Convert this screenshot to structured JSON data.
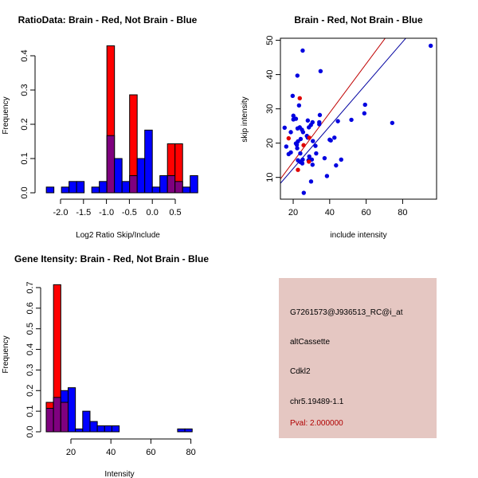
{
  "colors": {
    "red": "#ff0000",
    "blue": "#0000ff",
    "overlap": "#7f007f",
    "panel": "#e5c7c2",
    "pval": "#b00000"
  },
  "chart_data": [
    {
      "type": "bar",
      "title": "RatioData: Brain - Red, Not Brain - Blue",
      "xlabel": "Log2 Ratio Skip/Include",
      "ylabel": "Frequency",
      "bin_start": -2.31,
      "bin_width": 0.165,
      "xticks": [
        "-2.0",
        "-1.5",
        "-1.0",
        "-0.5",
        "0.0",
        "0.5"
      ],
      "xtick_values": [
        -2.0,
        -1.5,
        -1.0,
        -0.5,
        0.0,
        0.5
      ],
      "yticks": [
        "0.0",
        "0.1",
        "0.2",
        "0.3",
        "0.4"
      ],
      "ytick_values": [
        0,
        0.1,
        0.2,
        0.3,
        0.4
      ],
      "series": [
        {
          "name": "Not Brain",
          "color": "blue",
          "values": [
            0.0167,
            0,
            0.0167,
            0.033,
            0.033,
            0,
            0.0167,
            0.033,
            0.167,
            0.1,
            0.033,
            0.05,
            0.1,
            0.183,
            0.0167,
            0.05,
            0.05,
            0.033,
            0.0167,
            0.05
          ]
        },
        {
          "name": "Brain",
          "color": "red",
          "values": [
            0,
            0,
            0,
            0,
            0,
            0,
            0,
            0,
            0.429,
            0,
            0,
            0.286,
            0,
            0,
            0,
            0,
            0.143,
            0.143,
            0,
            0
          ]
        }
      ]
    },
    {
      "type": "scatter",
      "title": "Brain - Red, Not Brain - Blue",
      "xlabel": "include intensity",
      "ylabel": "skip intensity",
      "xlim": [
        13,
        98.6
      ],
      "ylim": [
        3.65,
        50.6
      ],
      "xticks": [
        "20",
        "40",
        "60",
        "80"
      ],
      "xtick_values": [
        20,
        40,
        60,
        80
      ],
      "yticks": [
        "10",
        "20",
        "30",
        "40",
        "50"
      ],
      "ytick_values": [
        10,
        20,
        30,
        40,
        50
      ],
      "series": [
        {
          "name": "Not Brain",
          "color": "blue",
          "points": [
            [
              95.4,
              48.4
            ],
            [
              25.2,
              47
            ],
            [
              22.3,
              39.7
            ],
            [
              35,
              41
            ],
            [
              19.7,
              33.8
            ],
            [
              23.2,
              31
            ],
            [
              59.4,
              31.2
            ],
            [
              59,
              28.7
            ],
            [
              74.3,
              25.9
            ],
            [
              20.1,
              28
            ],
            [
              20.1,
              26.9
            ],
            [
              21.5,
              27.1
            ],
            [
              34.6,
              28.2
            ],
            [
              51.9,
              26.8
            ],
            [
              44.5,
              26.4
            ],
            [
              28,
              26.6
            ],
            [
              30.6,
              26.1
            ],
            [
              34.3,
              26.1
            ],
            [
              34.3,
              25.5
            ],
            [
              29.7,
              25.3
            ],
            [
              15.3,
              24.5
            ],
            [
              23.6,
              24.6
            ],
            [
              28.6,
              24.6
            ],
            [
              22.4,
              24.3
            ],
            [
              24.8,
              23.9
            ],
            [
              25.4,
              23.2
            ],
            [
              18.7,
              23.2
            ],
            [
              27.5,
              22.1
            ],
            [
              28,
              21.6
            ],
            [
              42.6,
              21.6
            ],
            [
              40,
              21
            ],
            [
              40.6,
              20.8
            ],
            [
              24.1,
              21.2
            ],
            [
              22.6,
              20.5
            ],
            [
              30.8,
              20.6
            ],
            [
              21.5,
              19.9
            ],
            [
              22,
              19.5
            ],
            [
              32.2,
              19.2
            ],
            [
              16.2,
              19
            ],
            [
              22.2,
              18.5
            ],
            [
              18.7,
              17.3
            ],
            [
              17.5,
              16.8
            ],
            [
              23.9,
              17
            ],
            [
              32.6,
              17
            ],
            [
              28.8,
              16.1
            ],
            [
              37.2,
              15.6
            ],
            [
              22.6,
              15
            ],
            [
              29.1,
              15.3
            ],
            [
              30.2,
              15.2
            ],
            [
              25.2,
              15.2
            ],
            [
              46.3,
              15.2
            ],
            [
              23.9,
              14.5
            ],
            [
              28.4,
              15
            ],
            [
              25,
              14.1
            ],
            [
              30.6,
              13.7
            ],
            [
              43.5,
              13.5
            ],
            [
              38.5,
              10.4
            ],
            [
              29.8,
              8.8
            ],
            [
              25.8,
              5.5
            ]
          ]
        },
        {
          "name": "Brain",
          "color": "red",
          "points": [
            [
              23.6,
              33.1
            ],
            [
              28.8,
              21.6
            ],
            [
              17.5,
              21.4
            ],
            [
              25.7,
              19.4
            ],
            [
              28.6,
              14.6
            ],
            [
              22.6,
              12.2
            ]
          ]
        }
      ],
      "fit_lines": [
        {
          "color": "red",
          "slope": 0.715,
          "intercept": 0.24
        },
        {
          "color": "blue",
          "slope": 0.616,
          "intercept": 0.26
        }
      ]
    },
    {
      "type": "bar",
      "title": "Gene Itensity: Brain - Red, Not Brain - Blue",
      "xlabel": "Intensity",
      "ylabel": "Frequency",
      "bin_start": 7.65,
      "bin_width": 3.65,
      "xticks": [
        "20",
        "40",
        "60",
        "80"
      ],
      "xtick_values": [
        20,
        40,
        60,
        80
      ],
      "yticks": [
        "0.0",
        "0.1",
        "0.2",
        "0.3",
        "0.4",
        "0.5",
        "0.6",
        "0.7"
      ],
      "ytick_values": [
        0,
        0.1,
        0.2,
        0.3,
        0.4,
        0.5,
        0.6,
        0.7
      ],
      "series": [
        {
          "name": "Not Brain",
          "color": "blue",
          "values": [
            0.114,
            0.167,
            0.2,
            0.214,
            0.014,
            0.1,
            0.05,
            0.029,
            0.029,
            0.029,
            0,
            0,
            0,
            0,
            0,
            0,
            0,
            0,
            0.014,
            0.014
          ]
        },
        {
          "name": "Brain",
          "color": "red",
          "values": [
            0.143,
            0.714,
            0.143,
            0,
            0,
            0,
            0,
            0,
            0,
            0,
            0,
            0,
            0,
            0,
            0,
            0,
            0,
            0,
            0,
            0
          ]
        }
      ]
    }
  ],
  "info": {
    "probe": "G7261573@J936513_RC@i_at",
    "event": "altCassette",
    "gene": "Cdkl2",
    "location": "chr5.19489-1.1",
    "pval": "Pval: 2.000000"
  }
}
